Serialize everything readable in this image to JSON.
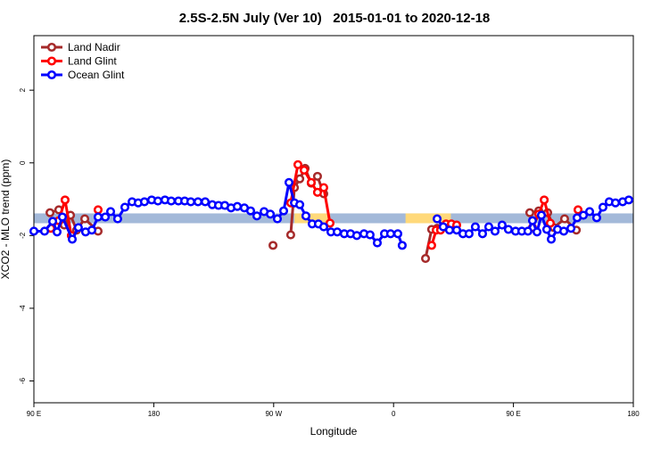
{
  "chart_data": {
    "type": "line",
    "title": "2.5S-2.5N July (Ver 10)   2015-01-01 to 2020-12-18",
    "xlabel": "Longitude",
    "ylabel": "XCO2 - MLO trend (ppm)",
    "xlim": [
      90,
      540
    ],
    "ylim": [
      -6.6,
      3.5
    ],
    "xticks": [
      {
        "value": 90,
        "label": "90 E"
      },
      180,
      {
        "value": 270,
        "label": "90 W"
      },
      {
        "value": 360,
        "label": "0"
      },
      {
        "value": 450,
        "label": "90 E"
      },
      {
        "value": 540,
        "label": "180"
      }
    ],
    "yticks": [
      2,
      0,
      -2,
      -4,
      -6
    ],
    "band": {
      "ylim": [
        -1.66,
        -1.39
      ],
      "color": "#a3b9d9"
    },
    "land_spans": {
      "color": "#ffd97a",
      "ylim": [
        -1.66,
        -1.39
      ],
      "x": [
        [
          285.6,
          312.4
        ],
        [
          369,
          403
        ]
      ]
    },
    "legend": "top-left",
    "series": [
      {
        "name": "Land Nadir",
        "color": "#a52a2a",
        "x": [
          102.1,
          108.7,
          112.8,
          117.5,
          122.1,
          128.2,
          138.2,
          200,
          269.5,
          275,
          282.8,
          285.6,
          289.6,
          293.6,
          298.2,
          302.9,
          307.6,
          350,
          384.0,
          388.6,
          392.7,
          396.7,
          430,
          462.3,
          469.0,
          475.7,
          480.4,
          488.4,
          497.2
        ],
        "values": [
          -1.37,
          -1.29,
          -1.71,
          -1.44,
          -1.85,
          -1.54,
          -1.88,
          null,
          -2.27,
          null,
          -1.98,
          -0.68,
          -0.44,
          -0.15,
          -0.56,
          -0.37,
          -0.85,
          null,
          -2.63,
          -1.83,
          -1.8,
          -1.78,
          null,
          -1.37,
          -1.32,
          -1.37,
          -1.78,
          -1.54,
          -1.85
        ]
      },
      {
        "name": "Land Glint",
        "color": "#ff0000",
        "x": [
          102.7,
          108.7,
          113.4,
          118.1,
          125,
          138.2,
          200,
          282.8,
          288.2,
          292.9,
          298.2,
          302.9,
          307.6,
          312.3,
          350,
          388.6,
          392.0,
          395.3,
          399.4,
          403.4,
          407.4,
          430,
          464.3,
          469.0,
          473.1,
          477.7,
          490,
          498.5
        ],
        "values": [
          -1.8,
          -1.59,
          -1.02,
          -2.0,
          null,
          -1.29,
          null,
          -1.1,
          -0.05,
          -0.2,
          -0.54,
          -0.81,
          -0.68,
          -1.66,
          null,
          -2.27,
          -1.85,
          -1.85,
          -1.68,
          -1.68,
          -1.71,
          null,
          -1.78,
          -1.41,
          -1.02,
          -1.66,
          null,
          -1.29
        ]
      },
      {
        "name": "Ocean Glint",
        "color": "#0000ff",
        "x": [
          90,
          98.0,
          104.1,
          107.4,
          111.4,
          118.8,
          123.4,
          128.8,
          133.5,
          138.2,
          143.6,
          147.6,
          152.9,
          158.3,
          163.7,
          168.3,
          173.0,
          178.4,
          183.1,
          188.4,
          193.1,
          198.5,
          203.2,
          207.8,
          213.2,
          218.6,
          223.9,
          228.6,
          233.3,
          238.0,
          242.7,
          248.0,
          252.7,
          257.4,
          262.8,
          267.5,
          272.8,
          277.5,
          281.5,
          285.6,
          289.6,
          294.2,
          298.9,
          303.6,
          307.6,
          313.0,
          317.7,
          323.0,
          327.7,
          332.4,
          337.8,
          342.4,
          347.8,
          353.2,
          357.8,
          363.2,
          366.5,
          380,
          392.7,
          397.3,
          402.0,
          407.4,
          412.1,
          416.7,
          421.4,
          426.8,
          431.5,
          436.2,
          441.5,
          446.2,
          451.6,
          456.3,
          460.9,
          464.3,
          467.7,
          471.0,
          475.0,
          478.4,
          483.1,
          487.8,
          493.2,
          497.8,
          502.5,
          507.2,
          512.5,
          517.2,
          521.9,
          526.6,
          532.0,
          536.6
        ],
        "values": [
          -1.88,
          -1.88,
          -1.61,
          -1.9,
          -1.49,
          -2.1,
          -1.78,
          -1.9,
          -1.85,
          -1.49,
          -1.49,
          -1.34,
          -1.54,
          -1.22,
          -1.07,
          -1.1,
          -1.07,
          -1.02,
          -1.05,
          -1.02,
          -1.05,
          -1.05,
          -1.05,
          -1.07,
          -1.07,
          -1.07,
          -1.15,
          -1.17,
          -1.17,
          -1.24,
          -1.2,
          -1.24,
          -1.32,
          -1.46,
          -1.34,
          -1.41,
          -1.54,
          -1.32,
          -0.54,
          -1.1,
          -1.15,
          -1.46,
          -1.68,
          -1.68,
          -1.76,
          -1.9,
          -1.9,
          -1.95,
          -1.95,
          -2.0,
          -1.95,
          -1.98,
          -2.2,
          -1.95,
          -1.95,
          -1.95,
          -2.27,
          null,
          -1.54,
          -1.76,
          -1.85,
          -1.85,
          -1.95,
          -1.95,
          -1.76,
          -1.95,
          -1.76,
          -1.88,
          -1.71,
          -1.83,
          -1.88,
          -1.88,
          -1.88,
          -1.59,
          -1.9,
          -1.44,
          -1.83,
          -2.1,
          -1.83,
          -1.88,
          -1.8,
          -1.51,
          -1.44,
          -1.34,
          -1.51,
          -1.22,
          -1.07,
          -1.1,
          -1.07,
          -1.02
        ]
      }
    ]
  }
}
